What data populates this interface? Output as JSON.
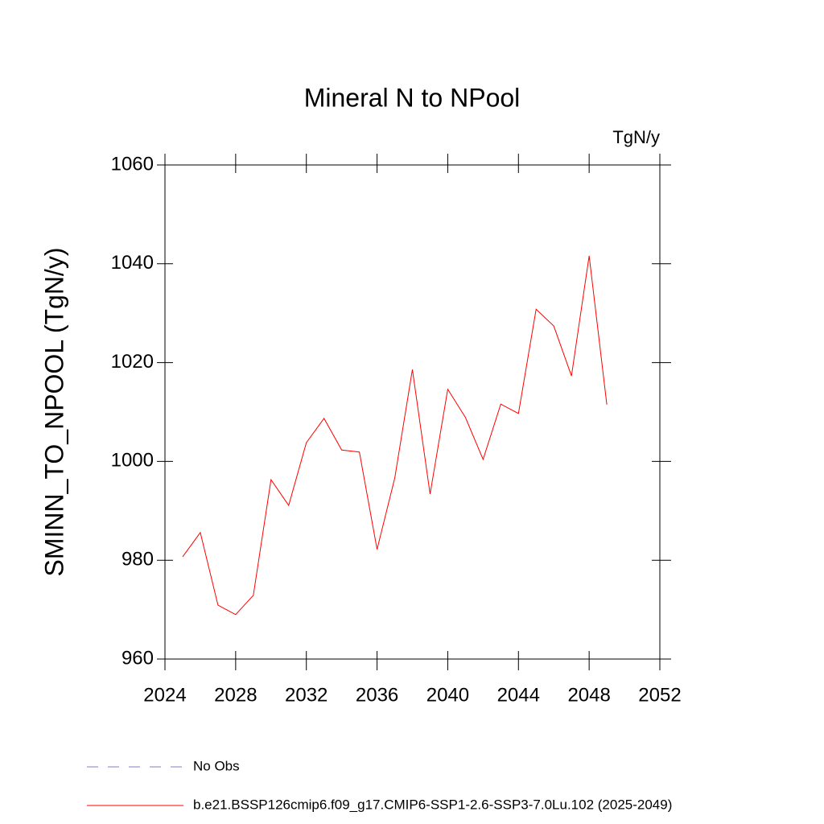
{
  "chart_data": {
    "type": "line",
    "title": "Mineral N to NPool",
    "units_label": "TgN/y",
    "y_label": "SMINN_TO_NPOOL  (TgN/y)",
    "x": [
      2025,
      2026,
      2027,
      2028,
      2029,
      2030,
      2031,
      2032,
      2033,
      2034,
      2035,
      2036,
      2037,
      2038,
      2039,
      2040,
      2041,
      2042,
      2043,
      2044,
      2045,
      2046,
      2047,
      2048,
      2049
    ],
    "series": [
      {
        "name": "b.e21.BSSP126cmip6.f09_g17.CMIP6-SSP1-2.6-SSP3-7.0Lu.102 (2025-2049)",
        "color": "#ff0000",
        "values": [
          980.7,
          985.6,
          970.9,
          969.0,
          972.9,
          996.3,
          991.1,
          1003.8,
          1008.7,
          1002.3,
          1001.9,
          982.2,
          996.6,
          1018.6,
          993.4,
          1014.6,
          1008.9,
          1000.4,
          1011.6,
          1009.7,
          1030.8,
          1027.4,
          1017.3,
          1041.6,
          1011.5
        ]
      }
    ],
    "reference_legend": {
      "name": "No Obs",
      "color": "#8878c8",
      "dashed": true
    },
    "xlim": [
      2024,
      2052
    ],
    "xticks": [
      2024,
      2028,
      2032,
      2036,
      2040,
      2044,
      2048,
      2052
    ],
    "ylim": [
      960,
      1060
    ],
    "yticks": [
      960,
      980,
      1000,
      1020,
      1040,
      1060
    ]
  }
}
